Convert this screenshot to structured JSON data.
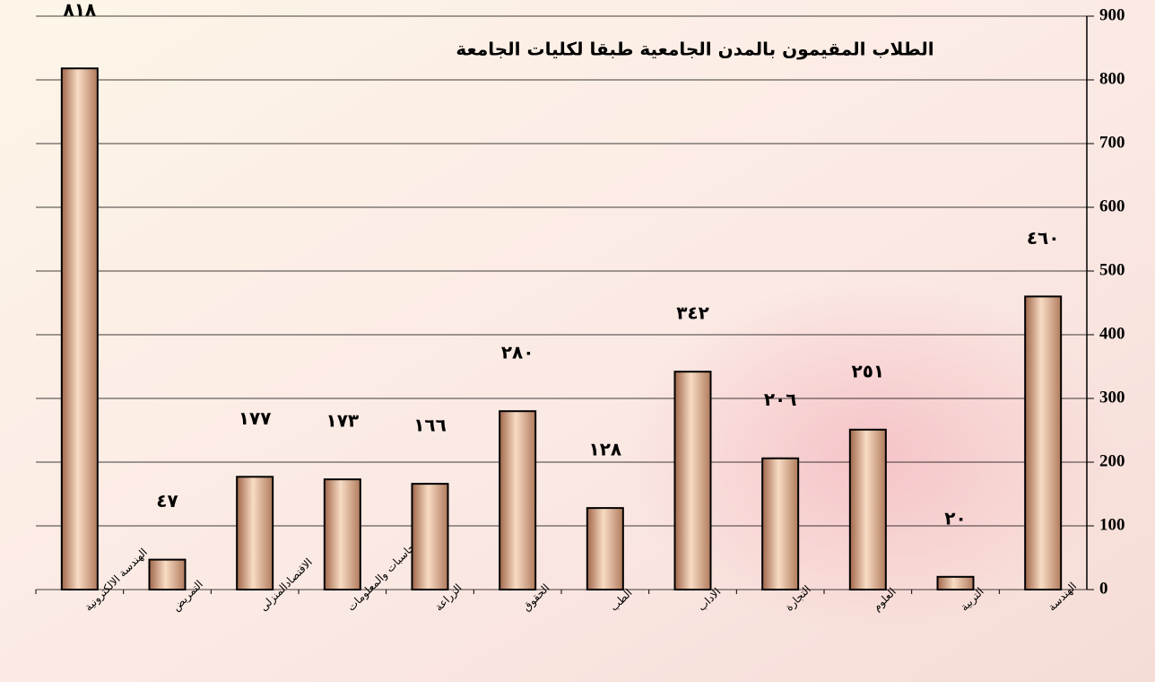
{
  "chart_data": {
    "type": "bar",
    "title": "الطلاب المقيمون بالمدن الجامعية طبقا لكليات الجامعة",
    "categories": [
      "الهندسة الالكترونية",
      "التمريض",
      "الاقتصادالمنزلى",
      "الحاسبات والمعلومات",
      "الزراعة",
      "الحقوق",
      "الطب",
      "الاداب",
      "التجارة",
      "العلوم",
      "التربية",
      "الهندسة"
    ],
    "values": [
      818,
      47,
      177,
      173,
      166,
      280,
      128,
      342,
      206,
      251,
      20,
      460
    ],
    "value_labels": [
      "٨١٨",
      "٤٧",
      "١٧٧",
      "١٧٣",
      "١٦٦",
      "٢٨٠",
      "١٢٨",
      "٣٤٢",
      "٢٠٦",
      "٢٥١",
      "٢٠",
      "٤٦٠"
    ],
    "color": "#e8b898",
    "ylim": [
      0,
      900
    ],
    "yticks": [
      0,
      100,
      200,
      300,
      400,
      500,
      600,
      700,
      800,
      900
    ],
    "grid": true
  }
}
